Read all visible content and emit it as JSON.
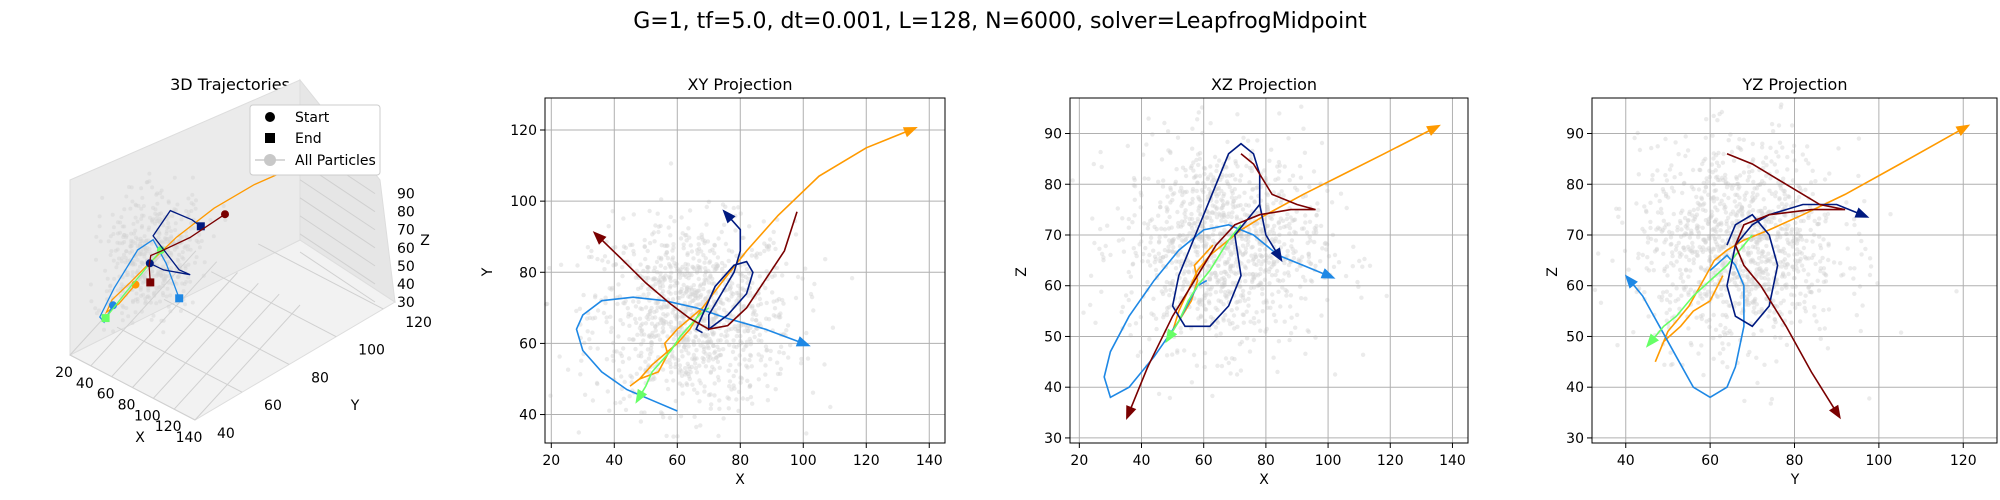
{
  "title": "G=1, tf=5.0, dt=0.001, L=128, N=6000, solver=LeapfrogMidpoint",
  "colors": {
    "background_particles": "#d3d3d3",
    "grid": "#b0b0b0",
    "pane": "#f2f2f2"
  },
  "chart_data": [
    {
      "type": "scatter",
      "kind": "3d",
      "title": "3D Trajectories",
      "xlabel": "X",
      "ylabel": "Y",
      "zlabel": "Z",
      "xticks": [
        20,
        40,
        60,
        80,
        100,
        120,
        140
      ],
      "yticks": [
        40,
        60,
        80,
        100,
        120
      ],
      "zticks": [
        30,
        40,
        50,
        60,
        70,
        80,
        90
      ],
      "xlim": [
        20,
        140
      ],
      "ylim": [
        40,
        125
      ],
      "zlim": [
        30,
        92
      ],
      "legend": {
        "placement": "top-right",
        "entries": [
          {
            "label": "Start",
            "marker": "circle",
            "color": "#000000"
          },
          {
            "label": "End",
            "marker": "square",
            "color": "#000000"
          },
          {
            "label": "All Particles",
            "marker": "circle",
            "color": "#c8c8c8"
          }
        ]
      },
      "grid": true
    },
    {
      "type": "scatter",
      "kind": "projection",
      "title": "XY Projection",
      "xlabel": "X",
      "ylabel": "Y",
      "xlim": [
        18,
        145
      ],
      "ylim": [
        32,
        129
      ],
      "xticks": [
        20,
        40,
        60,
        80,
        100,
        120,
        140
      ],
      "yticks": [
        40,
        60,
        80,
        100,
        120
      ],
      "grid": true,
      "cloud_center": [
        65,
        68
      ],
      "cloud_spread": [
        16,
        13
      ]
    },
    {
      "type": "scatter",
      "kind": "projection",
      "title": "XZ Projection",
      "xlabel": "X",
      "ylabel": "Z",
      "xlim": [
        17,
        145
      ],
      "ylim": [
        29,
        97
      ],
      "xticks": [
        20,
        40,
        60,
        80,
        100,
        120,
        140
      ],
      "yticks": [
        30,
        40,
        50,
        60,
        70,
        80,
        90
      ],
      "grid": true,
      "cloud_center": [
        66,
        68
      ],
      "cloud_spread": [
        16,
        10
      ]
    },
    {
      "type": "scatter",
      "kind": "projection",
      "title": "YZ Projection",
      "xlabel": "Y",
      "ylabel": "Z",
      "xlim": [
        32,
        128
      ],
      "ylim": [
        29,
        97
      ],
      "xticks": [
        40,
        60,
        80,
        100,
        120
      ],
      "yticks": [
        30,
        40,
        50,
        60,
        70,
        80,
        90
      ],
      "grid": true,
      "cloud_center": [
        67,
        68
      ],
      "cloud_spread": [
        12,
        10
      ]
    }
  ],
  "trajectories": [
    {
      "color": "#ff9a00",
      "xy": [
        [
          134,
          120
        ],
        [
          120,
          115
        ],
        [
          105,
          107
        ],
        [
          92,
          96
        ],
        [
          82,
          86
        ],
        [
          74,
          77
        ],
        [
          68,
          70
        ],
        [
          64,
          64
        ],
        [
          60,
          60
        ],
        [
          56,
          57
        ],
        [
          52,
          54
        ],
        [
          48,
          50
        ],
        [
          45,
          48
        ],
        [
          48,
          50
        ],
        [
          54,
          52
        ],
        [
          57,
          57
        ],
        [
          56,
          60
        ],
        [
          60,
          64
        ],
        [
          64,
          67
        ],
        [
          68,
          70
        ]
      ],
      "xz": [
        [
          134,
          91
        ],
        [
          118,
          86
        ],
        [
          105,
          82
        ],
        [
          92,
          78
        ],
        [
          80,
          74
        ],
        [
          72,
          71
        ],
        [
          66,
          68
        ],
        [
          62,
          66
        ],
        [
          58,
          63
        ],
        [
          55,
          59
        ],
        [
          52,
          55
        ],
        [
          50,
          51
        ],
        [
          49,
          50
        ],
        [
          52,
          53
        ],
        [
          56,
          57
        ],
        [
          58,
          61
        ],
        [
          57,
          64
        ],
        [
          60,
          66
        ],
        [
          63,
          68
        ]
      ],
      "yz": [
        [
          120,
          91
        ],
        [
          105,
          84
        ],
        [
          92,
          78
        ],
        [
          82,
          74
        ],
        [
          74,
          71
        ],
        [
          68,
          69
        ],
        [
          64,
          67
        ],
        [
          61,
          65
        ],
        [
          59,
          62
        ],
        [
          57,
          59
        ],
        [
          55,
          56
        ],
        [
          52,
          53
        ],
        [
          50,
          51
        ],
        [
          48,
          47
        ],
        [
          47,
          45
        ],
        [
          49,
          49
        ],
        [
          53,
          52
        ],
        [
          56,
          55
        ],
        [
          60,
          57
        ],
        [
          63,
          62
        ]
      ],
      "d3": [
        [
          134,
          120,
          91
        ],
        [
          110,
          110,
          84
        ],
        [
          90,
          95,
          78
        ],
        [
          75,
          78,
          72
        ],
        [
          65,
          65,
          66
        ],
        [
          56,
          57,
          60
        ],
        [
          48,
          50,
          55
        ],
        [
          45,
          48,
          50
        ],
        [
          52,
          52,
          53
        ],
        [
          58,
          60,
          58
        ]
      ]
    },
    {
      "color": "#1e88e5",
      "xy": [
        [
          100,
          60
        ],
        [
          88,
          64
        ],
        [
          76,
          67
        ],
        [
          66,
          70
        ],
        [
          56,
          72
        ],
        [
          46,
          73
        ],
        [
          36,
          72
        ],
        [
          30,
          68
        ],
        [
          28,
          64
        ],
        [
          30,
          58
        ],
        [
          36,
          52
        ],
        [
          44,
          47
        ],
        [
          52,
          44
        ],
        [
          60,
          41
        ]
      ],
      "xz": [
        [
          100,
          62
        ],
        [
          92,
          64
        ],
        [
          84,
          66
        ],
        [
          76,
          70
        ],
        [
          68,
          72
        ],
        [
          60,
          71
        ],
        [
          52,
          67
        ],
        [
          44,
          61
        ],
        [
          36,
          54
        ],
        [
          30,
          47
        ],
        [
          28,
          42
        ],
        [
          30,
          38
        ],
        [
          36,
          40
        ],
        [
          44,
          46
        ],
        [
          52,
          53
        ],
        [
          58,
          60
        ],
        [
          61,
          61
        ]
      ],
      "yz": [
        [
          41,
          61
        ],
        [
          44,
          58
        ],
        [
          48,
          52
        ],
        [
          52,
          46
        ],
        [
          56,
          40
        ],
        [
          60,
          38
        ],
        [
          64,
          40
        ],
        [
          66,
          44
        ],
        [
          68,
          52
        ],
        [
          68,
          60
        ],
        [
          66,
          64
        ],
        [
          64,
          66
        ],
        [
          60,
          63
        ]
      ],
      "d3": [
        [
          100,
          60,
          62
        ],
        [
          80,
          66,
          69
        ],
        [
          60,
          72,
          71
        ],
        [
          44,
          73,
          62
        ],
        [
          30,
          66,
          46
        ],
        [
          30,
          55,
          40
        ],
        [
          44,
          47,
          46
        ],
        [
          60,
          41,
          61
        ]
      ]
    },
    {
      "color": "#66ff66",
      "xy": [
        [
          48,
          45
        ],
        [
          50,
          48
        ],
        [
          52,
          52
        ],
        [
          55,
          55
        ],
        [
          58,
          58
        ],
        [
          61,
          62
        ],
        [
          64,
          65
        ],
        [
          67,
          68
        ],
        [
          70,
          70
        ]
      ],
      "xz": [
        [
          49,
          50
        ],
        [
          52,
          53
        ],
        [
          55,
          57
        ],
        [
          58,
          60
        ],
        [
          62,
          63
        ],
        [
          65,
          66
        ],
        [
          68,
          69
        ],
        [
          72,
          72
        ]
      ],
      "yz": [
        [
          46,
          49
        ],
        [
          49,
          52
        ],
        [
          52,
          54
        ],
        [
          56,
          58
        ],
        [
          60,
          61
        ],
        [
          64,
          64
        ],
        [
          67,
          67
        ],
        [
          70,
          70
        ]
      ],
      "d3": [
        [
          48,
          45,
          50
        ],
        [
          55,
          55,
          57
        ],
        [
          62,
          63,
          63
        ],
        [
          70,
          70,
          70
        ]
      ]
    },
    {
      "color": "#001a80",
      "xy": [
        [
          76,
          96
        ],
        [
          80,
          92
        ],
        [
          80,
          86
        ],
        [
          78,
          80
        ],
        [
          74,
          74
        ],
        [
          70,
          68
        ],
        [
          70,
          64
        ],
        [
          76,
          68
        ],
        [
          82,
          74
        ],
        [
          84,
          80
        ],
        [
          82,
          83
        ],
        [
          78,
          82
        ],
        [
          72,
          76
        ],
        [
          68,
          68
        ],
        [
          66,
          64
        ],
        [
          68,
          63
        ]
      ],
      "xz": [
        [
          84,
          66
        ],
        [
          80,
          70
        ],
        [
          78,
          76
        ],
        [
          78,
          82
        ],
        [
          76,
          86
        ],
        [
          72,
          88
        ],
        [
          68,
          86
        ],
        [
          64,
          80
        ],
        [
          60,
          74
        ],
        [
          56,
          68
        ],
        [
          52,
          62
        ],
        [
          50,
          56
        ],
        [
          54,
          52
        ],
        [
          62,
          52
        ],
        [
          68,
          56
        ],
        [
          72,
          62
        ],
        [
          70,
          70
        ],
        [
          78,
          76
        ]
      ],
      "yz": [
        [
          96,
          74
        ],
        [
          90,
          76
        ],
        [
          82,
          76
        ],
        [
          74,
          74
        ],
        [
          70,
          72
        ],
        [
          66,
          68
        ],
        [
          64,
          60
        ],
        [
          66,
          54
        ],
        [
          70,
          52
        ],
        [
          74,
          56
        ],
        [
          76,
          64
        ],
        [
          74,
          70
        ],
        [
          70,
          74
        ],
        [
          66,
          72
        ],
        [
          64,
          68
        ]
      ],
      "d3": [
        [
          76,
          96,
          66
        ],
        [
          80,
          86,
          76
        ],
        [
          74,
          74,
          86
        ],
        [
          70,
          64,
          80
        ],
        [
          80,
          76,
          60
        ],
        [
          82,
          83,
          54
        ],
        [
          70,
          72,
          60
        ],
        [
          68,
          63,
          68
        ]
      ]
    },
    {
      "color": "#7a0000",
      "xy": [
        [
          35,
          90
        ],
        [
          42,
          84
        ],
        [
          50,
          77
        ],
        [
          58,
          71
        ],
        [
          64,
          67
        ],
        [
          70,
          64
        ],
        [
          76,
          65
        ],
        [
          82,
          70
        ],
        [
          88,
          78
        ],
        [
          94,
          86
        ],
        [
          98,
          97
        ]
      ],
      "xz": [
        [
          36,
          35
        ],
        [
          42,
          44
        ],
        [
          50,
          54
        ],
        [
          58,
          62
        ],
        [
          64,
          68
        ],
        [
          70,
          72
        ],
        [
          78,
          74
        ],
        [
          88,
          75
        ],
        [
          96,
          75
        ],
        [
          90,
          76
        ],
        [
          82,
          78
        ],
        [
          76,
          84
        ],
        [
          72,
          86
        ]
      ],
      "yz": [
        [
          90,
          35
        ],
        [
          84,
          43
        ],
        [
          78,
          52
        ],
        [
          72,
          60
        ],
        [
          68,
          64
        ],
        [
          66,
          68
        ],
        [
          68,
          72
        ],
        [
          74,
          74
        ],
        [
          84,
          75
        ],
        [
          92,
          75
        ],
        [
          86,
          76
        ],
        [
          78,
          80
        ],
        [
          70,
          84
        ],
        [
          64,
          86
        ]
      ],
      "d3": [
        [
          35,
          90,
          35
        ],
        [
          50,
          77,
          54
        ],
        [
          64,
          67,
          68
        ],
        [
          76,
          65,
          74
        ],
        [
          88,
          78,
          75
        ],
        [
          98,
          97,
          76
        ]
      ]
    }
  ]
}
